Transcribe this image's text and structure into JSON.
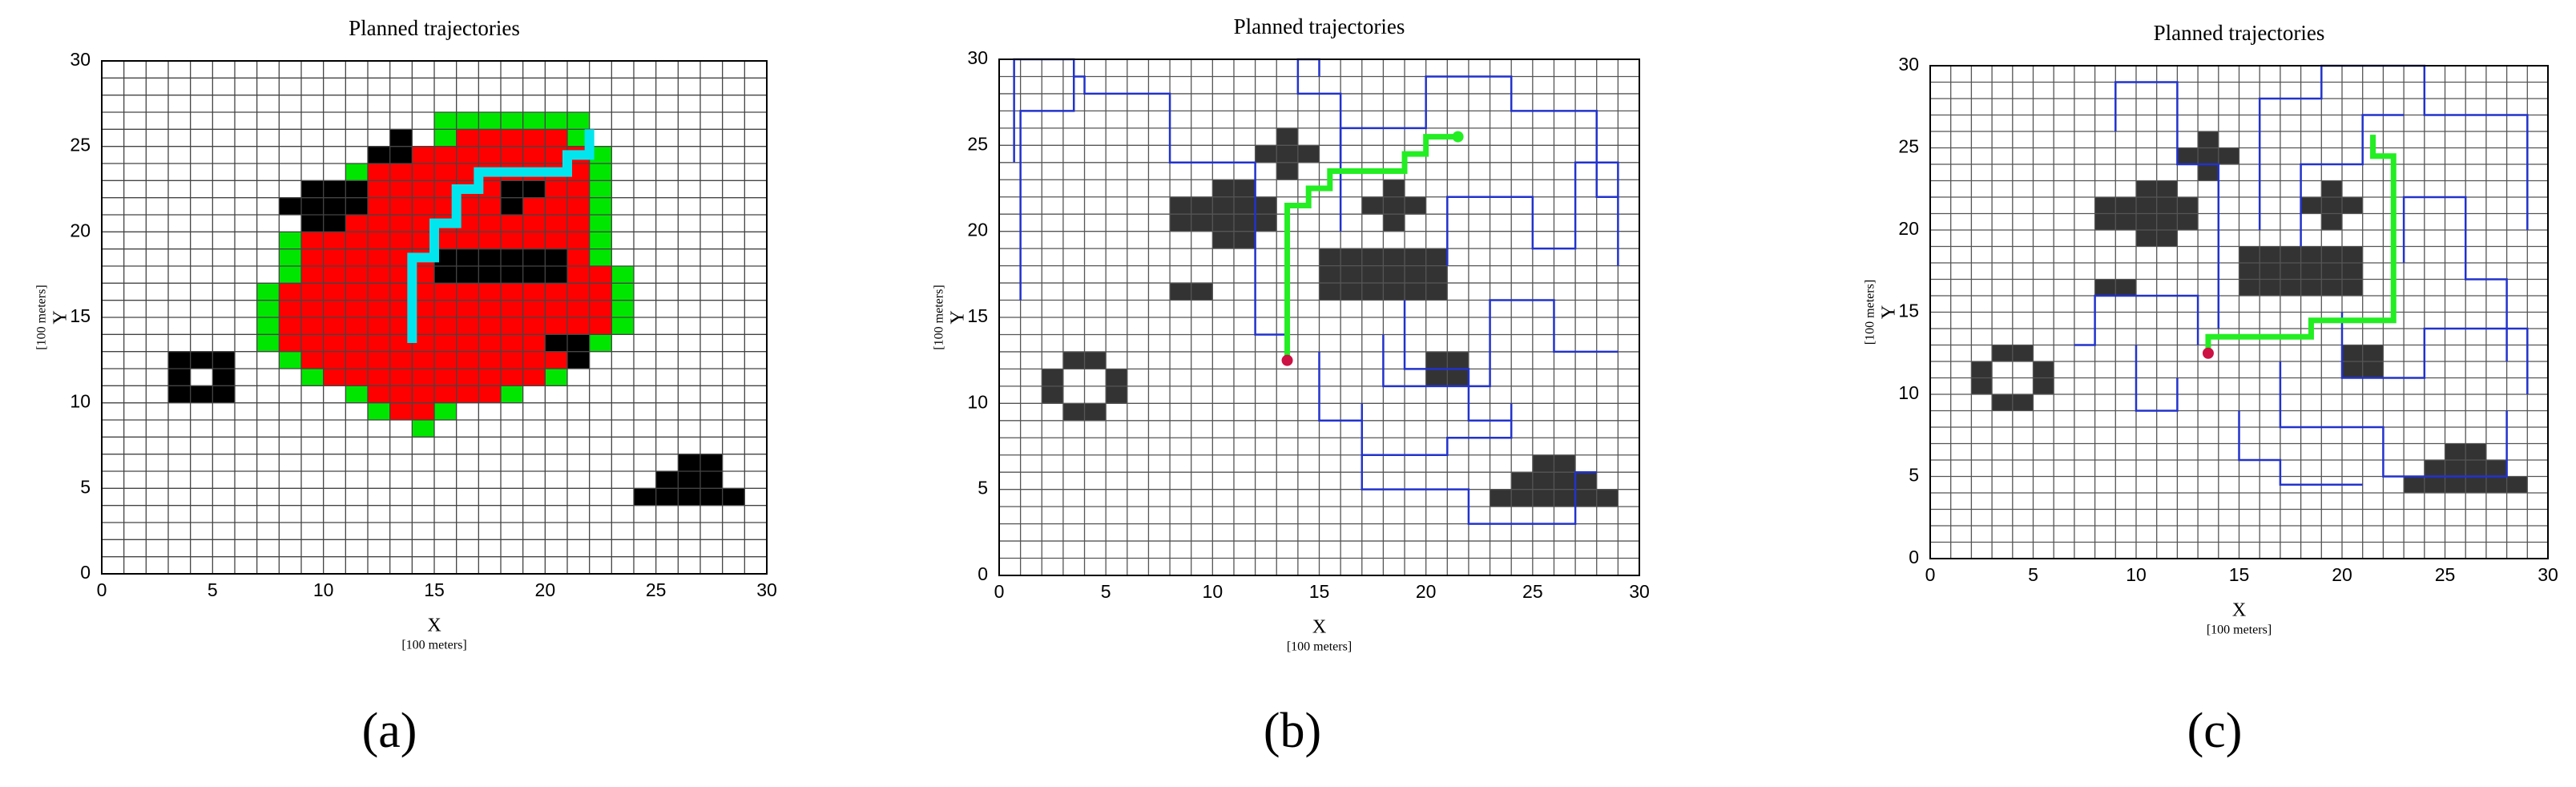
{
  "chart_data": [
    {
      "type": "grid",
      "title": "Planned trajectories",
      "xlabel": "X",
      "xunit": "[100 meters]",
      "ylabel": "Y",
      "yunit": "[100 meters]",
      "caption": "(a)",
      "xlim": [
        0,
        30
      ],
      "ylim": [
        0,
        30
      ],
      "xticks": [
        0,
        5,
        10,
        15,
        20,
        25,
        30
      ],
      "yticks": [
        0,
        5,
        10,
        15,
        20,
        25,
        30
      ],
      "xgrid": [
        0,
        1,
        2,
        3,
        4,
        5,
        6,
        7,
        8,
        9,
        10,
        11,
        12,
        13,
        14,
        15,
        16,
        17,
        18,
        19,
        20,
        21,
        22,
        23,
        24,
        25,
        26,
        27,
        28,
        29,
        30
      ],
      "ygrid": [
        0,
        1,
        2,
        3,
        4,
        5,
        6,
        7,
        8,
        9,
        10,
        11,
        12,
        13,
        14,
        15,
        16,
        17,
        18,
        19,
        20,
        21,
        22,
        23,
        24,
        25,
        26,
        27,
        28,
        29,
        30
      ],
      "grid_color": "#444444",
      "cells": [
        {
          "color": "#00e600",
          "x": [
            15,
            15,
            13,
            11,
            10,
            9,
            9,
            8,
            8,
            8,
            7,
            7,
            7,
            7,
            8,
            9,
            11,
            12,
            14
          ],
          "y": [
            26,
            25,
            24,
            23,
            22,
            21,
            20,
            19,
            18,
            17,
            16,
            15,
            14,
            13,
            12,
            11,
            10,
            9,
            8
          ],
          "w": [
            7,
            7,
            10,
            12,
            13,
            14,
            14,
            15,
            15,
            16,
            17,
            17,
            17,
            16,
            14,
            12,
            8,
            4,
            1
          ]
        },
        {
          "color": "#ff0000",
          "x": [
            16,
            14,
            12,
            11,
            10,
            10,
            9,
            9,
            9,
            8,
            8,
            8,
            8,
            9,
            10,
            12,
            13
          ],
          "y": [
            25,
            24,
            23,
            22,
            21,
            20,
            19,
            18,
            17,
            16,
            15,
            14,
            13,
            12,
            11,
            10,
            9
          ],
          "w": [
            5,
            8,
            10,
            11,
            12,
            12,
            13,
            13,
            14,
            15,
            15,
            15,
            14,
            12,
            10,
            6,
            2
          ]
        },
        {
          "color": "#000000",
          "x": [
            13,
            12,
            9,
            8,
            9,
            18,
            18,
            15,
            15,
            20,
            21,
            3,
            3,
            5,
            3,
            24,
            25,
            26
          ],
          "y": [
            25,
            24,
            22,
            21,
            20,
            22,
            21,
            18,
            17,
            13,
            12,
            12,
            11,
            11,
            10,
            4,
            5,
            6
          ],
          "w": [
            1,
            2,
            3,
            4,
            2,
            2,
            1,
            6,
            6,
            2,
            1,
            3,
            1,
            1,
            3,
            5,
            3,
            2
          ]
        }
      ],
      "route": {
        "color": "#00e5ee",
        "x": [
          14,
          14,
          15,
          15,
          16,
          16,
          17,
          17,
          21,
          21,
          22,
          22
        ],
        "y": [
          13.5,
          18.5,
          18.5,
          20.5,
          20.5,
          22.5,
          22.5,
          23.5,
          23.5,
          24.5,
          24.5,
          26
        ]
      }
    },
    {
      "type": "grid",
      "title": "Planned trajectories",
      "xlabel": "X",
      "xunit": "[100 meters]",
      "ylabel": "Y",
      "yunit": "[100 meters]",
      "caption": "(b)",
      "xlim": [
        0,
        30
      ],
      "ylim": [
        0,
        30
      ],
      "xticks": [
        0,
        5,
        10,
        15,
        20,
        25,
        30
      ],
      "yticks": [
        0,
        5,
        10,
        15,
        20,
        25,
        30
      ],
      "xgrid": [
        0,
        1,
        2,
        3,
        4,
        5,
        6,
        7,
        8,
        9,
        10,
        11,
        12,
        13,
        14,
        15,
        16,
        17,
        18,
        19,
        20,
        21,
        22,
        23,
        24,
        25,
        26,
        27,
        28,
        29,
        30
      ],
      "ygrid": [
        0,
        1,
        2,
        3,
        4,
        5,
        6,
        7,
        8,
        9,
        10,
        11,
        12,
        13,
        14,
        15,
        16,
        17,
        18,
        19,
        20,
        21,
        22,
        23,
        24,
        25,
        26,
        27,
        28,
        29,
        30
      ],
      "grid_color": "#555555",
      "cells": [
        {
          "color": "#333333",
          "x": [
            3,
            2,
            5,
            2,
            5,
            3,
            10,
            8,
            8,
            10,
            8,
            13,
            12,
            13,
            18,
            17,
            18,
            15,
            15,
            15,
            20,
            20,
            23,
            24,
            25
          ],
          "y": [
            12,
            11,
            11,
            10,
            10,
            9,
            22,
            21,
            20,
            19,
            16,
            25,
            24,
            23,
            22,
            21,
            20,
            16,
            17,
            18,
            11,
            12,
            4,
            5,
            6
          ],
          "w": [
            2,
            1,
            1,
            1,
            1,
            2,
            2,
            5,
            5,
            2,
            2,
            1,
            3,
            1,
            1,
            3,
            1,
            6,
            6,
            6,
            2,
            2,
            6,
            4,
            2
          ]
        }
      ],
      "tree_color": "#2233cc",
      "tree": [
        {
          "x": [
            13.5,
            12,
            12,
            8,
            8,
            4,
            4,
            3.5,
            3.5,
            1,
            1
          ],
          "y": [
            14,
            14,
            24,
            24,
            28,
            28,
            29,
            29,
            27,
            27,
            16
          ]
        },
        {
          "x": [
            15,
            15,
            17,
            17,
            22,
            22,
            27,
            27,
            28
          ],
          "y": [
            13,
            9,
            9,
            5,
            5,
            3,
            3,
            6,
            6
          ]
        },
        {
          "x": [
            16,
            16,
            20,
            20,
            24,
            24,
            28,
            28,
            29
          ],
          "y": [
            20,
            26,
            26,
            29,
            29,
            27,
            27,
            22,
            22
          ]
        },
        {
          "x": [
            18,
            18,
            23,
            23,
            26,
            26,
            29
          ],
          "y": [
            14,
            11,
            11,
            16,
            16,
            13,
            13
          ]
        },
        {
          "x": [
            16,
            16,
            14,
            14,
            15,
            15
          ],
          "y": [
            24,
            28,
            28,
            30,
            30,
            29
          ]
        },
        {
          "x": [
            21,
            21,
            25,
            25,
            27,
            27,
            29,
            29
          ],
          "y": [
            18,
            22,
            22,
            19,
            19,
            24,
            24,
            18
          ]
        },
        {
          "x": [
            17,
            17,
            21,
            21,
            24,
            24
          ],
          "y": [
            10,
            7,
            7,
            8,
            8,
            10
          ]
        },
        {
          "x": [
            3.5,
            3.5,
            0.7,
            0.7
          ],
          "y": [
            29,
            30,
            30,
            24
          ]
        },
        {
          "x": [
            19,
            19,
            22,
            22,
            24
          ],
          "y": [
            16,
            12,
            12,
            9,
            9
          ]
        }
      ],
      "route": {
        "color": "#22ee22",
        "x": [
          13.5,
          13.5,
          14.5,
          14.5,
          15.5,
          15.5,
          19,
          19,
          20,
          20,
          21.5
        ],
        "y": [
          12.5,
          21.5,
          21.5,
          22.5,
          22.5,
          23.5,
          23.5,
          24.5,
          24.5,
          25.5,
          25.5
        ]
      },
      "end_marker": true,
      "start": {
        "x": 13.5,
        "y": 12.5,
        "color": "#cc1144"
      }
    },
    {
      "type": "grid",
      "title": "Planned trajectories",
      "xlabel": "X",
      "xunit": "[100 meters]",
      "ylabel": "Y",
      "yunit": "[100 meters]",
      "caption": "(c)",
      "xlim": [
        0,
        30
      ],
      "ylim": [
        0,
        30
      ],
      "xticks": [
        0,
        5,
        10,
        15,
        20,
        25,
        30
      ],
      "yticks": [
        0,
        5,
        10,
        15,
        20,
        25,
        30
      ],
      "xgrid": [
        0,
        1,
        2,
        3,
        4,
        5,
        6,
        7,
        8,
        9,
        10,
        11,
        12,
        13,
        14,
        15,
        16,
        17,
        18,
        19,
        20,
        21,
        22,
        23,
        24,
        25,
        26,
        27,
        28,
        29,
        30
      ],
      "ygrid": [
        0,
        1,
        2,
        3,
        4,
        5,
        6,
        7,
        8,
        9,
        10,
        11,
        12,
        13,
        14,
        15,
        16,
        17,
        18,
        19,
        20,
        21,
        22,
        23,
        24,
        25,
        26,
        27,
        28,
        29,
        30
      ],
      "grid_color": "#555555",
      "cells": [
        {
          "color": "#333333",
          "x": [
            3,
            2,
            5,
            2,
            5,
            3,
            10,
            8,
            8,
            10,
            8,
            13,
            12,
            13,
            19,
            18,
            19,
            15,
            15,
            15,
            20,
            20,
            23,
            24,
            25
          ],
          "y": [
            12,
            11,
            11,
            10,
            10,
            9,
            22,
            21,
            20,
            19,
            16,
            25,
            24,
            23,
            22,
            21,
            20,
            16,
            17,
            18,
            11,
            12,
            4,
            5,
            6
          ],
          "w": [
            2,
            1,
            1,
            1,
            1,
            2,
            2,
            5,
            5,
            2,
            2,
            1,
            3,
            1,
            1,
            3,
            1,
            6,
            6,
            6,
            2,
            2,
            6,
            4,
            2
          ]
        }
      ],
      "tree_color": "#2233cc",
      "tree": [
        {
          "x": [
            13,
            13,
            8,
            8,
            7
          ],
          "y": [
            13,
            16,
            16,
            13,
            13
          ]
        },
        {
          "x": [
            14,
            14,
            12,
            12,
            9,
            9
          ],
          "y": [
            14,
            24,
            24,
            29,
            29,
            26
          ]
        },
        {
          "x": [
            16,
            16,
            19,
            19,
            24,
            24,
            29,
            29
          ],
          "y": [
            20,
            28,
            28,
            30,
            30,
            27,
            27,
            20
          ]
        },
        {
          "x": [
            17,
            17,
            22,
            22,
            28,
            28
          ],
          "y": [
            12,
            8,
            8,
            5,
            5,
            9
          ]
        },
        {
          "x": [
            20,
            20,
            24,
            24,
            29,
            29
          ],
          "y": [
            15,
            11,
            11,
            14,
            14,
            10
          ]
        },
        {
          "x": [
            15,
            15,
            17,
            17,
            21
          ],
          "y": [
            9,
            6,
            6,
            4.5,
            4.5
          ]
        },
        {
          "x": [
            23,
            23,
            26,
            26,
            28,
            28
          ],
          "y": [
            18,
            22,
            22,
            17,
            17,
            12
          ]
        },
        {
          "x": [
            10,
            10,
            12,
            12
          ],
          "y": [
            13,
            9,
            9,
            11
          ]
        },
        {
          "x": [
            18,
            18,
            21,
            21,
            23
          ],
          "y": [
            19,
            24,
            24,
            27,
            27
          ]
        }
      ],
      "route": {
        "color": "#22ee22",
        "x": [
          13.5,
          13.5,
          18.5,
          18.5,
          22.5,
          22.5,
          21.5,
          21.5
        ],
        "y": [
          12.5,
          13.5,
          13.5,
          14.5,
          14.5,
          24.5,
          24.5,
          25.8
        ]
      },
      "start": {
        "x": 13.5,
        "y": 12.5,
        "color": "#cc1144"
      }
    }
  ]
}
